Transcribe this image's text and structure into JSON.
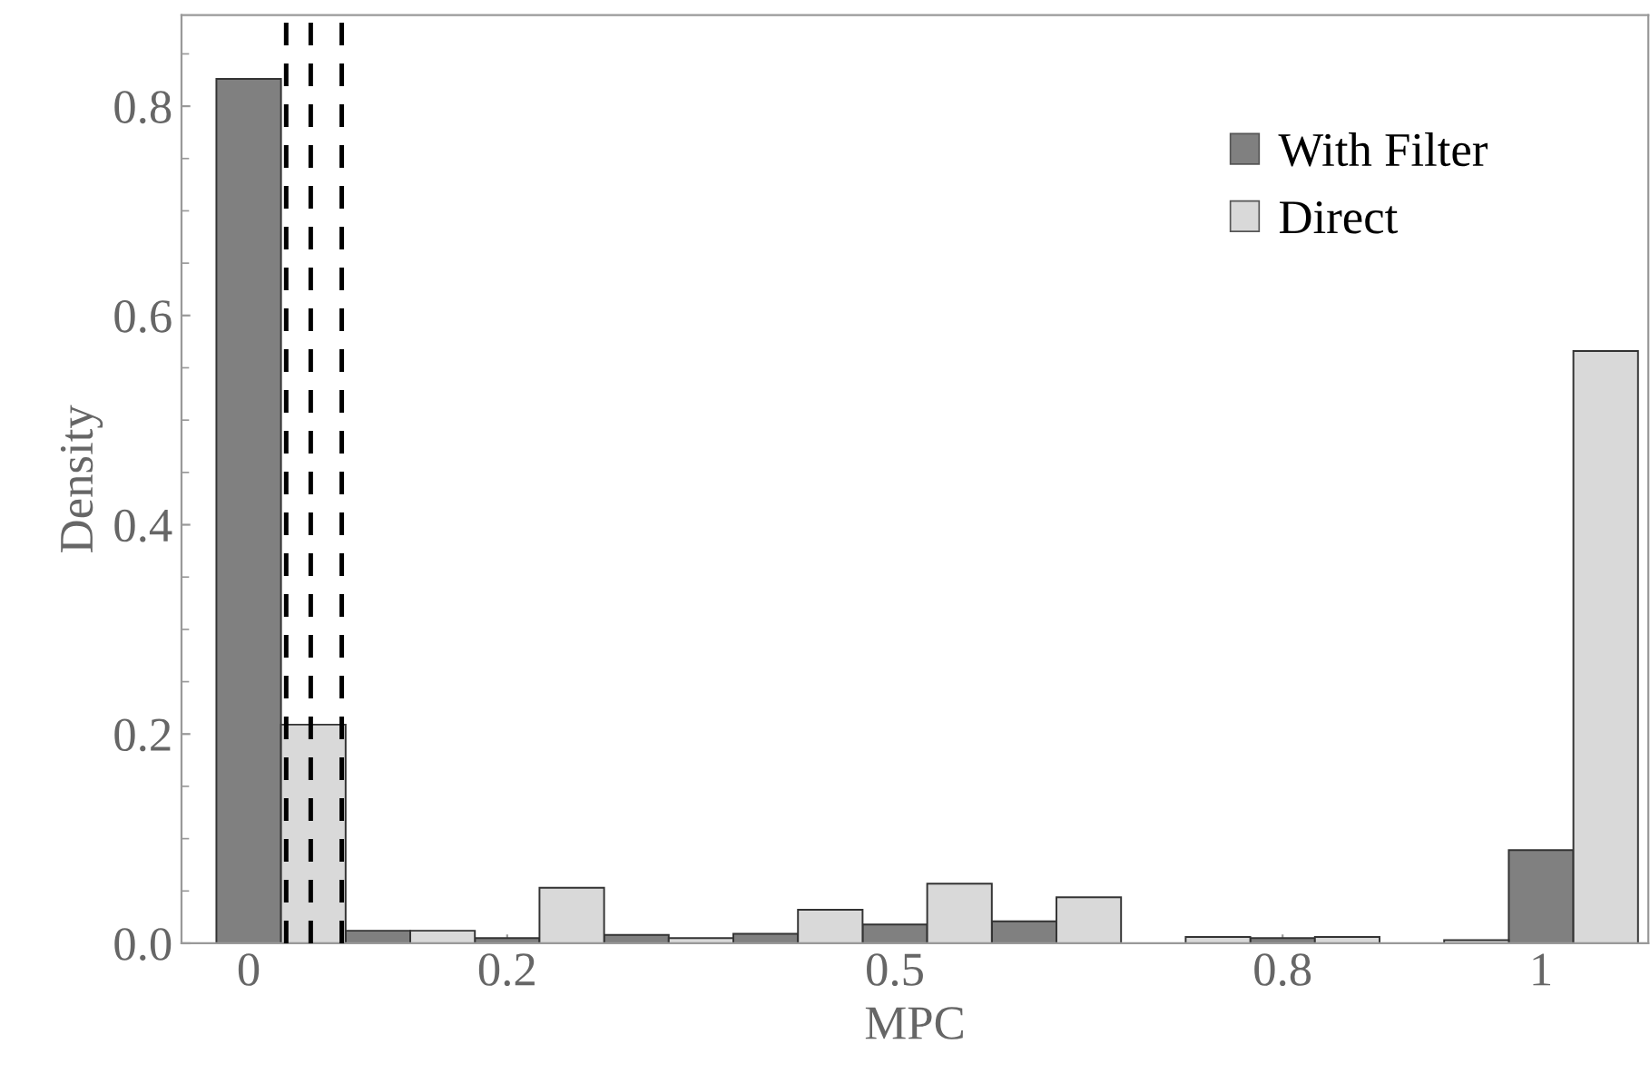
{
  "chart_data": {
    "type": "bar",
    "xlabel": "MPC",
    "ylabel": "Density",
    "series": [
      {
        "name": "With Filter",
        "color": "#808080",
        "x": [
          0,
          0.1,
          0.2,
          0.3,
          0.4,
          0.5,
          0.6,
          0.7,
          0.8,
          0.9,
          1.0
        ],
        "values": [
          0.826,
          0.012,
          0.005,
          0.008,
          0.009,
          0.018,
          0.021,
          null,
          0.005,
          null,
          0.089
        ]
      },
      {
        "name": "Direct",
        "color": "#d9d9d9",
        "x": [
          0.05,
          0.15,
          0.25,
          0.35,
          0.45,
          0.55,
          0.65,
          0.75,
          0.85,
          0.95,
          1.05
        ],
        "values": [
          0.209,
          0.012,
          0.053,
          0.005,
          0.032,
          0.057,
          0.044,
          0.006,
          0.006,
          0.003,
          0.566
        ]
      }
    ],
    "xlim": [
      -0.052,
      1.083
    ],
    "xticks": [
      0,
      0.2,
      0.5,
      0.8,
      1
    ],
    "ylim": [
      0,
      0.887
    ],
    "yticks": [
      {
        "value": 0,
        "label": "0.0"
      },
      0.2,
      0.4,
      0.6,
      0.8
    ],
    "ref_lines": [
      {
        "axis": "x",
        "value": 0.029,
        "color": "#000000",
        "line_style": "dashed"
      },
      {
        "axis": "x",
        "value": 0.048,
        "color": "#000000",
        "line_style": "dashed"
      },
      {
        "axis": "x",
        "value": 0.072,
        "color": "#000000",
        "line_style": "dashed"
      }
    ],
    "legend": "top right",
    "grid": false
  }
}
